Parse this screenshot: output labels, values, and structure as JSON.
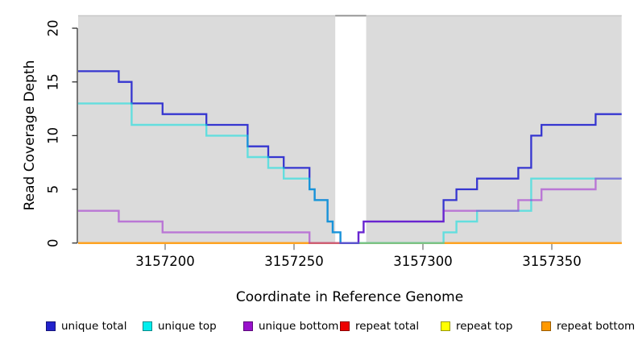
{
  "chart_data": {
    "type": "line",
    "subtype": "step-coverage",
    "title": "",
    "xlabel": "Coordinate in Reference Genome",
    "ylabel": "Read Coverage Depth",
    "x_ticks": [
      3157200,
      3157250,
      3157300,
      3157350
    ],
    "y_ticks": [
      0,
      5,
      10,
      15,
      20
    ],
    "x_range": [
      3157166,
      3157377
    ],
    "y_range": [
      0,
      21.2
    ],
    "grid": false,
    "plot_background": "#DBDBDB",
    "masked_region": {
      "start": 3157266,
      "end": 3157278,
      "color": "#FFFFFF",
      "top_border": "#8E8E8E"
    },
    "plot_top_border": "#C9C9C9",
    "axis_color": "#2E2E2E",
    "series": [
      {
        "name": "unique total",
        "color": "#2424CE",
        "opacity": 0.9,
        "width": 2.3,
        "z": 4,
        "steps": [
          [
            3157166,
            16
          ],
          [
            3157182,
            15
          ],
          [
            3157187,
            13
          ],
          [
            3157199,
            12
          ],
          [
            3157216,
            11
          ],
          [
            3157232,
            9
          ],
          [
            3157240,
            8
          ],
          [
            3157246,
            7
          ],
          [
            3157256,
            5
          ],
          [
            3157258,
            4
          ],
          [
            3157263,
            2
          ],
          [
            3157265,
            1
          ],
          [
            3157268,
            0
          ],
          [
            3157275,
            1
          ],
          [
            3157277,
            2
          ],
          [
            3157308,
            4
          ],
          [
            3157313,
            5
          ],
          [
            3157321,
            6
          ],
          [
            3157337,
            7
          ],
          [
            3157342,
            10
          ],
          [
            3157346,
            11
          ],
          [
            3157367,
            12
          ]
        ]
      },
      {
        "name": "unique top",
        "color": "#00E0E0",
        "opacity": 0.55,
        "width": 2.4,
        "z": 5,
        "steps": [
          [
            3157166,
            13
          ],
          [
            3157187,
            11
          ],
          [
            3157216,
            10
          ],
          [
            3157232,
            8
          ],
          [
            3157240,
            7
          ],
          [
            3157246,
            6
          ],
          [
            3157256,
            5
          ],
          [
            3157258,
            4
          ],
          [
            3157263,
            2
          ],
          [
            3157265,
            1
          ],
          [
            3157268,
            0
          ],
          [
            3157308,
            1
          ],
          [
            3157313,
            2
          ],
          [
            3157321,
            3
          ],
          [
            3157342,
            6
          ]
        ]
      },
      {
        "name": "unique bottom",
        "color": "#9913CF",
        "opacity": 0.5,
        "width": 2.4,
        "z": 6,
        "steps": [
          [
            3157166,
            3
          ],
          [
            3157182,
            2
          ],
          [
            3157199,
            1
          ],
          [
            3157256,
            0
          ],
          [
            3157275,
            1
          ],
          [
            3157277,
            2
          ],
          [
            3157308,
            3
          ],
          [
            3157337,
            4
          ],
          [
            3157346,
            5
          ],
          [
            3157367,
            6
          ]
        ]
      },
      {
        "name": "repeat total",
        "color": "#EE0000",
        "opacity": 1,
        "width": 2.0,
        "z": 1,
        "steps": [
          [
            3157166,
            0
          ]
        ]
      },
      {
        "name": "repeat top",
        "color": "#FFFF00",
        "opacity": 1,
        "width": 2.0,
        "z": 2,
        "steps": [
          [
            3157166,
            0
          ]
        ]
      },
      {
        "name": "repeat bottom",
        "color": "#FF9A1E",
        "opacity": 0.95,
        "width": 2.2,
        "z": 3,
        "steps": [
          [
            3157166,
            0
          ]
        ]
      }
    ],
    "legend": {
      "position": "bottom",
      "items": [
        {
          "label": "unique total",
          "fill": "#2222CC",
          "border": "#15157A"
        },
        {
          "label": "unique top",
          "fill": "#00EEEE",
          "border": "#0A8B8B"
        },
        {
          "label": "unique bottom",
          "fill": "#9911CC",
          "border": "#5C0A7A"
        },
        {
          "label": "repeat total",
          "fill": "#EE0000",
          "border": "#8B0000"
        },
        {
          "label": "repeat top",
          "fill": "#FFFF00",
          "border": "#99990A"
        },
        {
          "label": "repeat bottom",
          "fill": "#FF9900",
          "border": "#995C00"
        }
      ]
    }
  }
}
